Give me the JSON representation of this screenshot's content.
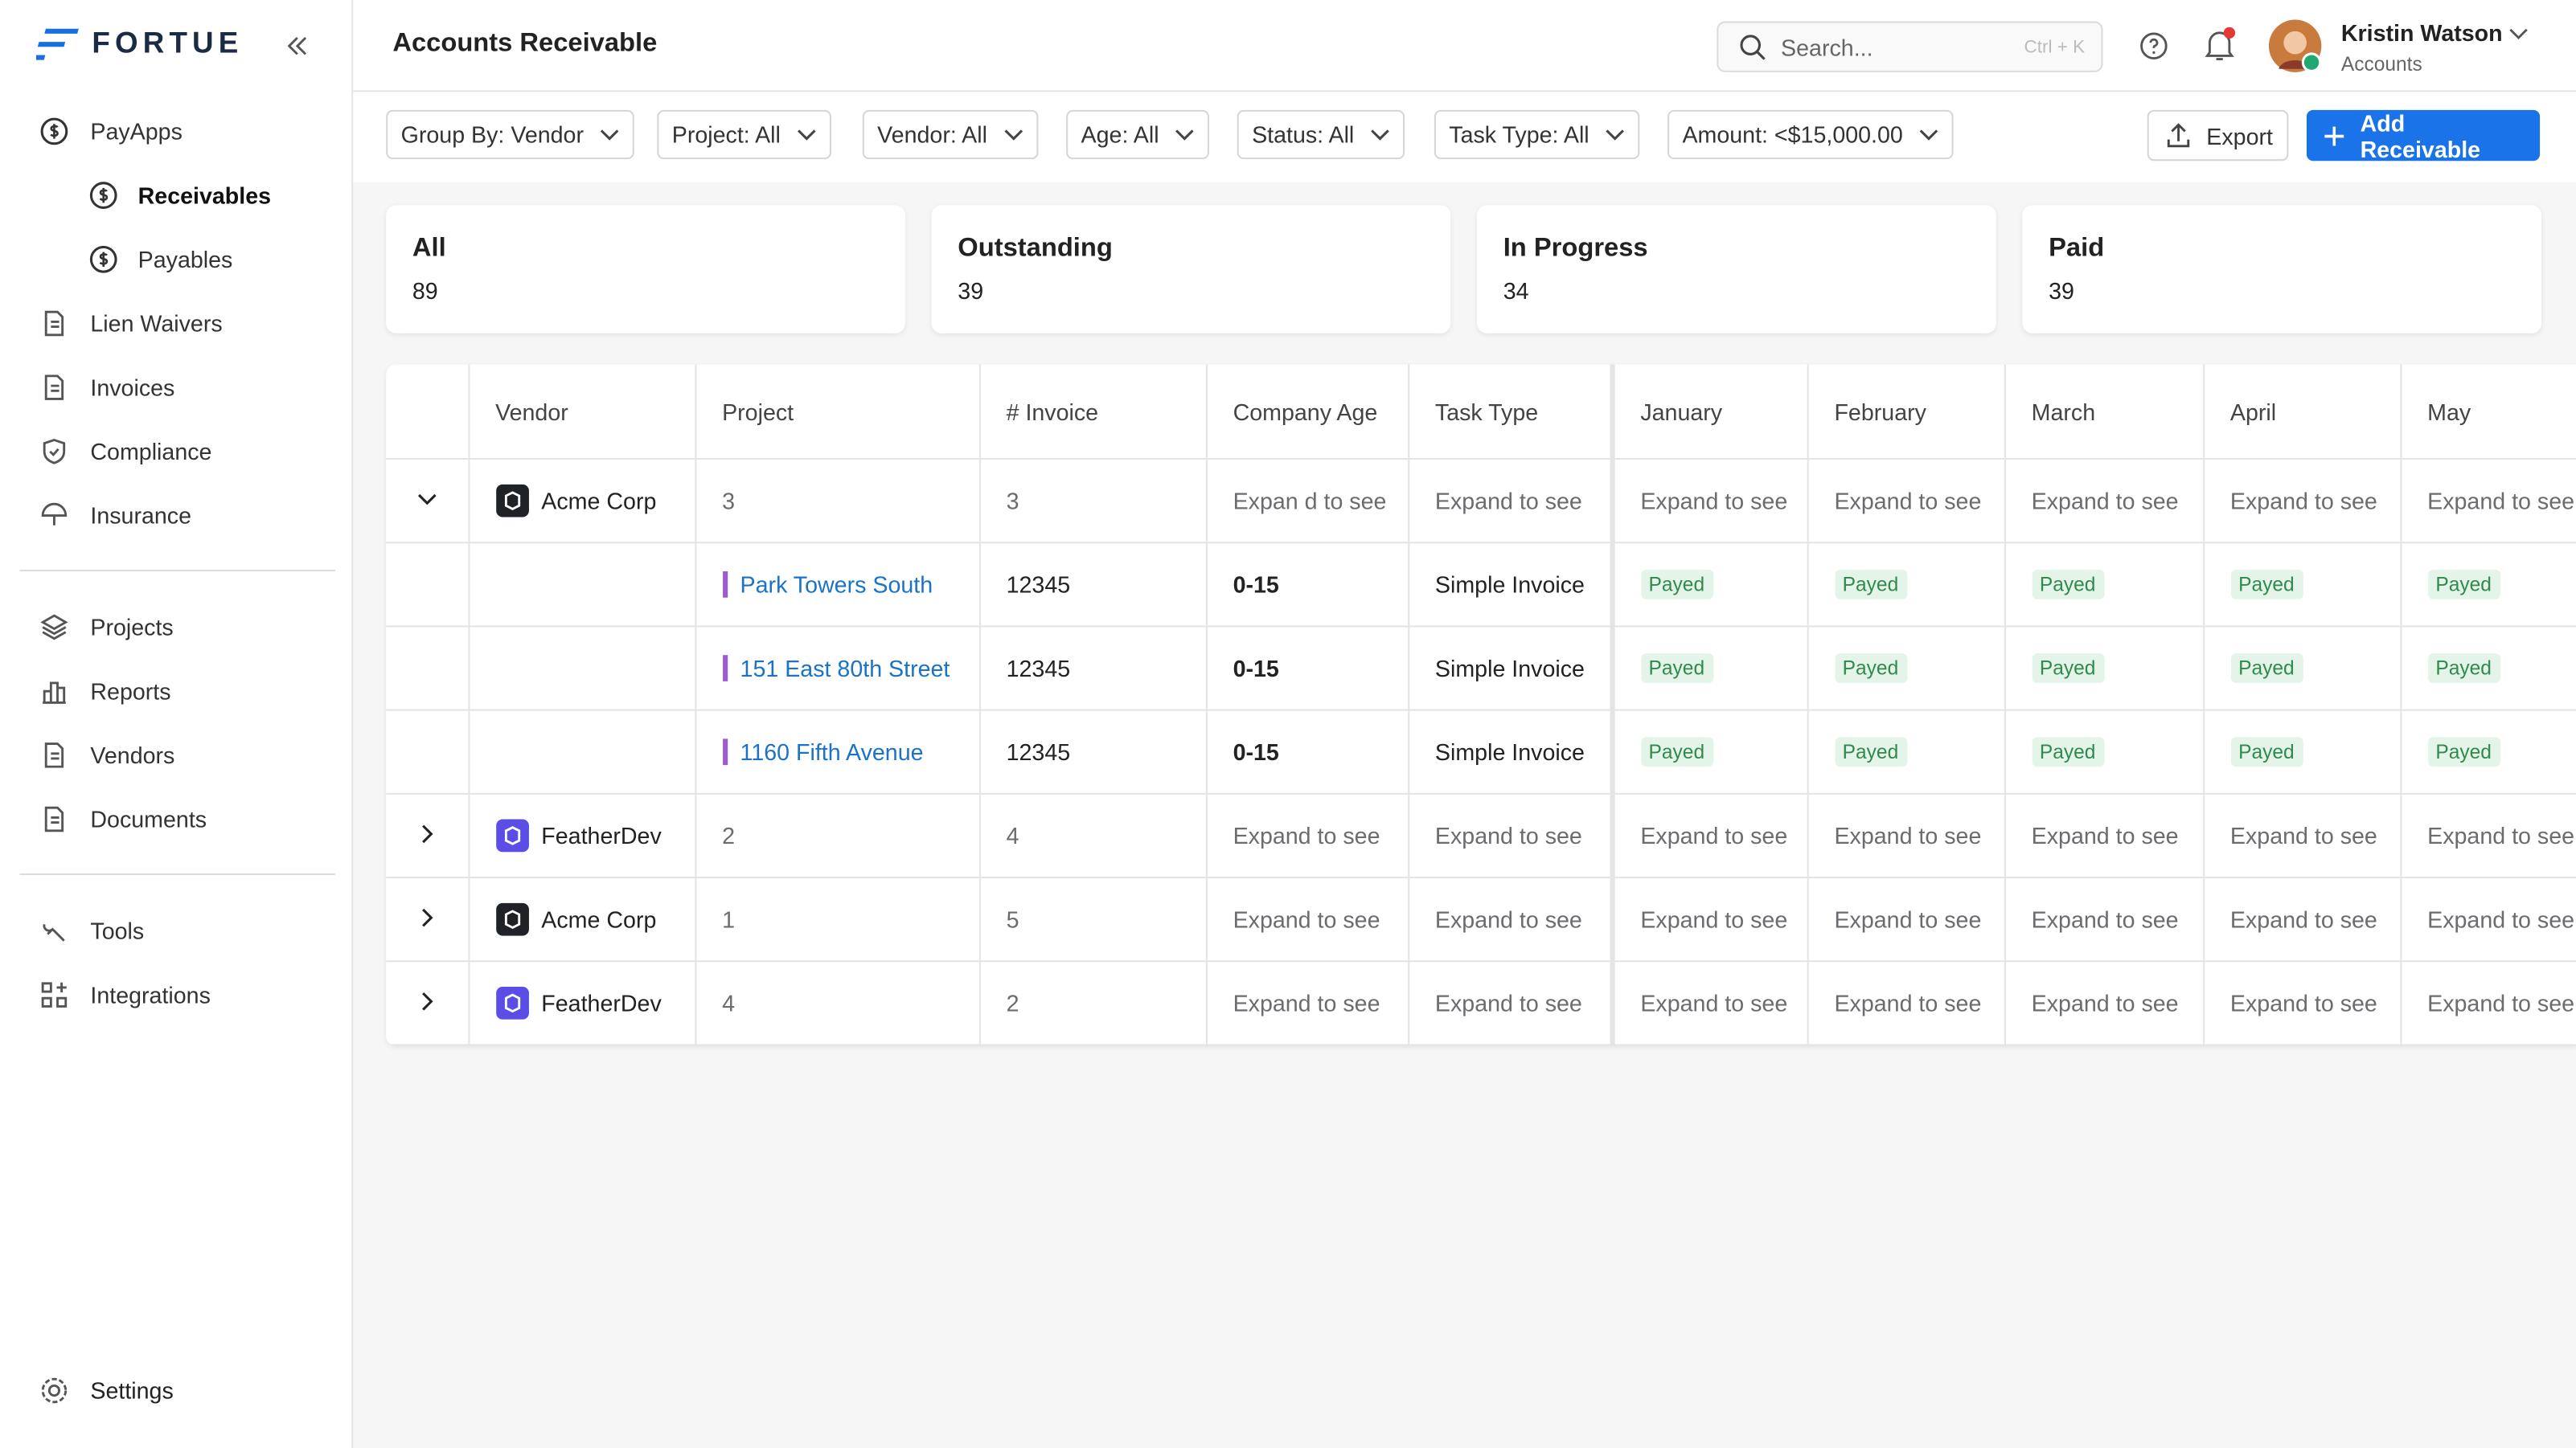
{
  "sidebar": {
    "brand": "FORTUE",
    "nav_sections": [
      [
        {
          "label": "PayApps",
          "icon": "dollar",
          "children": [
            {
              "label": "Receivables",
              "icon": "dollar",
              "active": true
            },
            {
              "label": "Payables",
              "icon": "dollar"
            }
          ]
        },
        {
          "label": "Lien Waivers",
          "icon": "doc"
        },
        {
          "label": "Invoices",
          "icon": "doc"
        },
        {
          "label": "Compliance",
          "icon": "shield"
        },
        {
          "label": "Insurance",
          "icon": "umbrella"
        }
      ],
      [
        {
          "label": "Projects",
          "icon": "layers"
        },
        {
          "label": "Reports",
          "icon": "chart"
        },
        {
          "label": "Vendors",
          "icon": "doc"
        },
        {
          "label": "Documents",
          "icon": "doc"
        }
      ],
      [
        {
          "label": "Tools",
          "icon": "tool"
        },
        {
          "label": "Integrations",
          "icon": "grid"
        }
      ]
    ],
    "settings": "Settings"
  },
  "header": {
    "title": "Accounts Receivable",
    "search_placeholder": "Search...",
    "search_shortcut": "Ctrl + K",
    "user_name": "Kristin Watson",
    "user_role": "Accounts"
  },
  "filters": [
    "Group By: Vendor",
    "Project: All",
    "Vendor: All",
    "Age: All",
    "Status: All",
    "Task Type: All",
    "Amount: <$15,000.00"
  ],
  "actions": {
    "export": "Export",
    "add": "Add Receivable"
  },
  "stats": [
    {
      "label": "All",
      "value": 89
    },
    {
      "label": "Outstanding",
      "value": 39
    },
    {
      "label": "In Progress",
      "value": 34
    },
    {
      "label": "Paid",
      "value": 39
    }
  ],
  "table": {
    "columns": [
      "Vendor",
      "Project",
      "# Invoice",
      "Company Age",
      "Task Type",
      "January",
      "February",
      "March",
      "April",
      "May"
    ],
    "groups": [
      {
        "vendor": "Acme Corp",
        "logo": "#1f2328",
        "expanded": true,
        "project": 3,
        "invoice": 3,
        "cells": [
          "Expan d to see",
          "Expand to see",
          "Expand to see",
          "Expand to see",
          "Expand to see",
          "Expand to see",
          "Expand to see"
        ],
        "children": [
          {
            "project": "Park Towers South",
            "invoice": 12345,
            "age": "0-15",
            "task_type": "Simple Invoice",
            "months": [
              "Payed",
              "Payed",
              "Payed",
              "Payed",
              "Payed"
            ]
          },
          {
            "project": "151 East 80th Street",
            "invoice": 12345,
            "age": "0-15",
            "task_type": "Simple Invoice",
            "months": [
              "Payed",
              "Payed",
              "Payed",
              "Payed",
              "Payed"
            ]
          },
          {
            "project": "1160 Fifth Avenue",
            "invoice": 12345,
            "age": "0-15",
            "task_type": "Simple Invoice",
            "months": [
              "Payed",
              "Payed",
              "Payed",
              "Payed",
              "Payed"
            ]
          }
        ]
      },
      {
        "vendor": "FeatherDev",
        "logo": "#5b4ee6",
        "expanded": false,
        "project": 2,
        "invoice": 4,
        "cells": [
          "Expand to see",
          "Expand to see",
          "Expand to see",
          "Expand to see",
          "Expand to see",
          "Expand to see",
          "Expand to see"
        ]
      },
      {
        "vendor": "Acme Corp",
        "logo": "#1f2328",
        "expanded": false,
        "project": 1,
        "invoice": 5,
        "cells": [
          "Expand to see",
          "Expand to see",
          "Expand to see",
          "Expand to see",
          "Expand to see",
          "Expand to see",
          "Expand to see"
        ]
      },
      {
        "vendor": "FeatherDev",
        "logo": "#5b4ee6",
        "expanded": false,
        "project": 4,
        "invoice": 2,
        "cells": [
          "Expand to see",
          "Expand to see",
          "Expand to see",
          "Expand to see",
          "Expand to see",
          "Expand to see",
          "Expand to see"
        ]
      }
    ]
  }
}
